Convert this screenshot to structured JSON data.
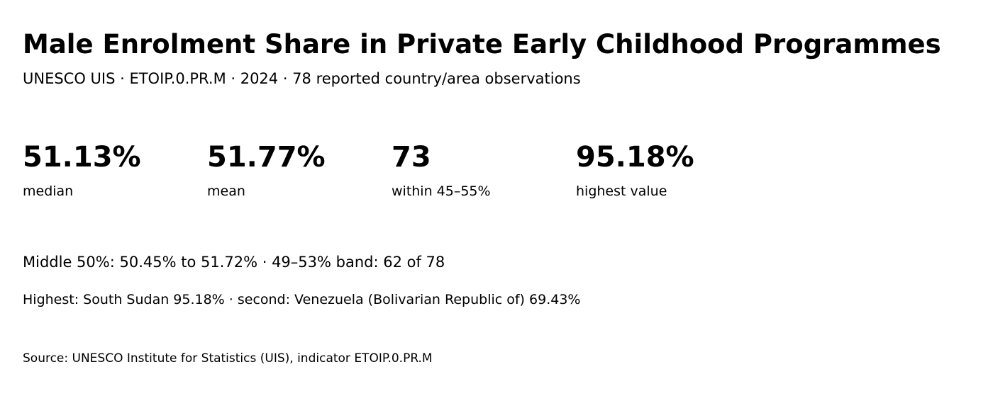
{
  "header": {
    "title": "Male Enrolment Share in Private Early Childhood Programmes",
    "subtitle": "UNESCO UIS · ETOIP.0.PR.M · 2024 · 78 reported country/area observations"
  },
  "stats": [
    {
      "value": "51.13%",
      "label": "median"
    },
    {
      "value": "51.77%",
      "label": "mean"
    },
    {
      "value": "73",
      "label": "within 45–55%"
    },
    {
      "value": "95.18%",
      "label": "highest value"
    }
  ],
  "notes": {
    "range": "Middle 50%: 50.45% to 51.72% · 49–53% band: 62 of 78",
    "highest": "Highest: South Sudan 95.18% · second: Venezuela (Bolivarian Republic of) 69.43%"
  },
  "footer": {
    "source": "Source: UNESCO Institute for Statistics (UIS), indicator ETOIP.0.PR.M"
  }
}
